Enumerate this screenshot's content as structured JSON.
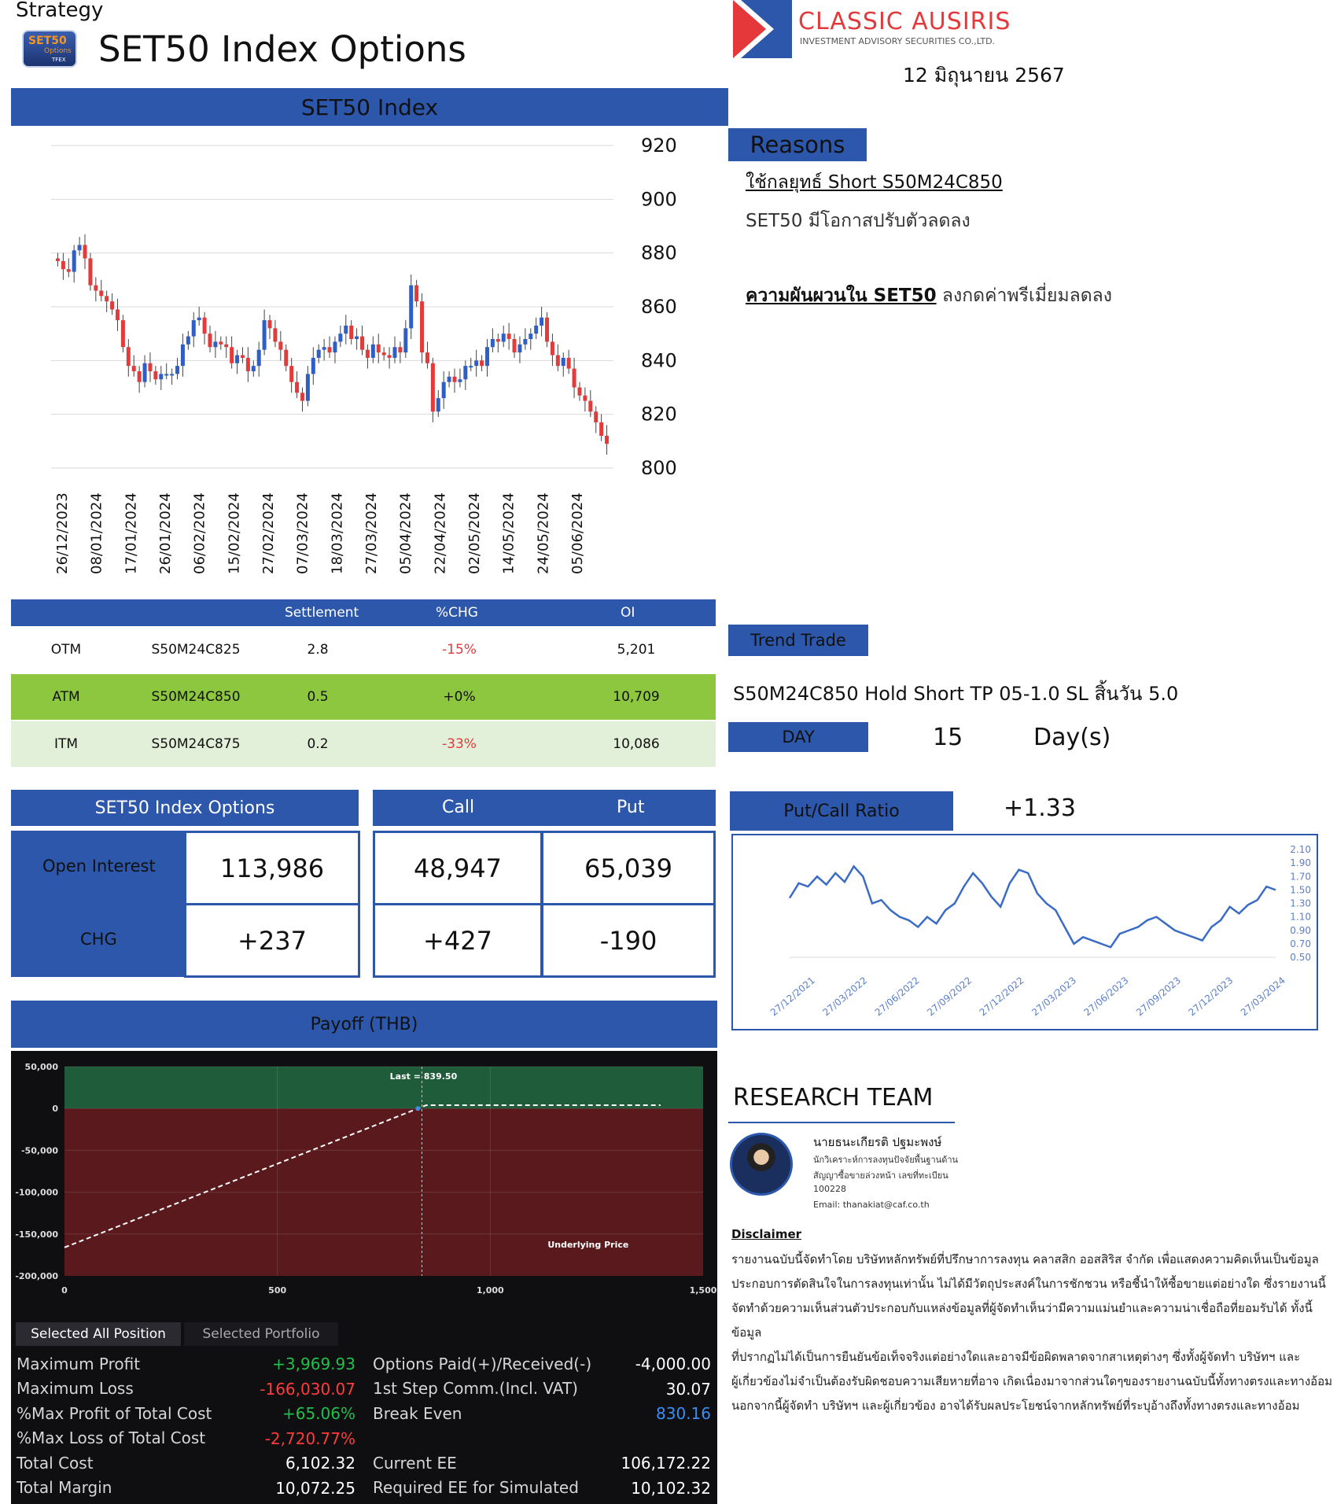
{
  "header": {
    "strategy": "Strategy",
    "badge_text": "SET50",
    "badge_sub": "Options",
    "badge_tfex": "TFEX",
    "title": "SET50 Index Options",
    "brand_name": "CLASSIC AUSIRIS",
    "brand_sub": "INVESTMENT ADVISORY SECURITIES CO.,LTD.",
    "date": "12 มิถุนายน 2567"
  },
  "colors": {
    "accent_blue": "#2d57aa",
    "atm_green": "#8dc63f",
    "itm_light": "#e2efd9",
    "red": "#e5383b",
    "profit_green": "#1e5c3a",
    "loss_red": "#5a1a1d"
  },
  "index_chart": {
    "heading": "SET50 Index",
    "chart_data": {
      "type": "candlestick",
      "yticks": [
        920,
        900,
        880,
        860,
        840,
        820,
        800
      ],
      "ylim": [
        800,
        920
      ],
      "xticks": [
        "26/12/2023",
        "08/01/2024",
        "17/01/2024",
        "26/01/2024",
        "06/02/2024",
        "15/02/2024",
        "27/02/2024",
        "07/03/2024",
        "18/03/2024",
        "27/03/2024",
        "05/04/2024",
        "22/04/2024",
        "02/05/2024",
        "14/05/2024",
        "24/05/2024",
        "05/06/2024"
      ],
      "grid": true,
      "closes": [
        877,
        874,
        873,
        881,
        883,
        878,
        868,
        866,
        864,
        862,
        859,
        855,
        845,
        838,
        836,
        832,
        839,
        836,
        833,
        835,
        835,
        835,
        838,
        846,
        849,
        855,
        856,
        850,
        845,
        847,
        846,
        845,
        839,
        842,
        841,
        836,
        838,
        844,
        855,
        852,
        847,
        844,
        838,
        832,
        828,
        825,
        835,
        841,
        844,
        845,
        843,
        847,
        850,
        853,
        848,
        849,
        844,
        841,
        846,
        843,
        842,
        841,
        845,
        843,
        852,
        868,
        862,
        843,
        839,
        821,
        826,
        832,
        834,
        832,
        833,
        838,
        838,
        840,
        838,
        845,
        848,
        847,
        850,
        848,
        843,
        846,
        848,
        850,
        853,
        856,
        847,
        842,
        838,
        841,
        837,
        830,
        827,
        825,
        821,
        817,
        812,
        809
      ]
    }
  },
  "options_table": {
    "headers": [
      "",
      "",
      "Settlement",
      "%CHG",
      "OI"
    ],
    "rows": [
      {
        "moneyness": "OTM",
        "series": "S50M24C825",
        "settlement": "2.8",
        "chg": "-15%",
        "oi": "5,201"
      },
      {
        "moneyness": "ATM",
        "series": "S50M24C850",
        "settlement": "0.5",
        "chg": "+0%",
        "oi": "10,709"
      },
      {
        "moneyness": "ITM",
        "series": "S50M24C875",
        "settlement": "0.2",
        "chg": "-33%",
        "oi": "10,086"
      }
    ]
  },
  "oi_grid": {
    "title": "SET50 Index Options",
    "call_label": "Call",
    "put_label": "Put",
    "open_interest_label": "Open Interest",
    "chg_label": "CHG",
    "open_interest_total": "113,986",
    "chg_total": "+237",
    "call_oi": "48,947",
    "put_oi": "65,039",
    "call_chg": "+427",
    "put_chg": "-190"
  },
  "payoff": {
    "heading": "Payoff (THB)",
    "chart_data": {
      "type": "line",
      "yticks": [
        "50,000",
        "0",
        "-50,000",
        "-100,000",
        "-150,000",
        "-200,000"
      ],
      "xticks": [
        "0",
        "500",
        "1,000",
        "1,500"
      ],
      "xlim": [
        0,
        1500
      ],
      "ylim": [
        -200000,
        50000
      ],
      "x": [
        0,
        830.16,
        850,
        1400
      ],
      "y": [
        -166030,
        0,
        3970,
        3970
      ],
      "last_label": "Last = 839.50",
      "last_x": 839.5,
      "underlying_label": "Underlying Price"
    },
    "tabs": [
      "Selected All Position",
      "Selected Portfolio"
    ],
    "left_stats": [
      {
        "label": "Maximum Profit",
        "value": "+3,969.93",
        "color": "green"
      },
      {
        "label": "Maximum Loss",
        "value": "-166,030.07",
        "color": "red"
      },
      {
        "label": "%Max Profit of Total Cost",
        "value": "+65.06%",
        "color": "green"
      },
      {
        "label": "%Max Loss of Total Cost",
        "value": "-2,720.77%",
        "color": "red"
      },
      {
        "label": "Total Cost",
        "value": "6,102.32",
        "color": "white"
      },
      {
        "label": "Total Margin",
        "value": "10,072.25",
        "color": "white"
      }
    ],
    "right_stats": [
      {
        "label": "Options Paid(+)/Received(-)",
        "value": "-4,000.00",
        "color": "white"
      },
      {
        "label": "1st Step Comm.(Incl. VAT)",
        "value": "30.07",
        "color": "white"
      },
      {
        "label": "Break Even",
        "value": "830.16",
        "color": "blue"
      },
      {
        "label": "",
        "value": "",
        "color": "white"
      },
      {
        "label": "Current EE",
        "value": "106,172.22",
        "color": "white"
      },
      {
        "label": "Required EE for Simulated",
        "value": "10,102.32",
        "color": "white"
      }
    ]
  },
  "reasons": {
    "heading": "Reasons",
    "line1": "ใช้กลยุทธ์ Short S50M24C850",
    "line2": "SET50 มีโอกาสปรับตัวลดลง",
    "line3_underlined": "ความผันผวนใน SET50",
    "line3_rest": " ลงกดค่าพรีเมี่ยมลดลง"
  },
  "trend": {
    "heading": "Trend Trade",
    "text": "S50M24C850 Hold Short TP 05-1.0 SL สิ้นวัน 5.0",
    "day_label": "DAY",
    "day_value": "15",
    "day_unit": "Day(s)"
  },
  "pcr": {
    "heading": "Put/Call Ratio",
    "value": "+1.33",
    "chart_data": {
      "type": "line",
      "yticks": [
        "2.10",
        "1.90",
        "1.70",
        "1.50",
        "1.30",
        "1.10",
        "0.90",
        "0.70",
        "0.50"
      ],
      "ylim": [
        0.5,
        2.1
      ],
      "xticks": [
        "27/12/2021",
        "27/03/2022",
        "27/06/2022",
        "27/09/2022",
        "27/12/2022",
        "27/03/2023",
        "27/06/2023",
        "27/09/2023",
        "27/12/2023",
        "27/03/2024"
      ],
      "values": [
        1.38,
        1.6,
        1.55,
        1.7,
        1.58,
        1.75,
        1.62,
        1.85,
        1.7,
        1.3,
        1.35,
        1.2,
        1.1,
        1.05,
        0.95,
        1.1,
        1.0,
        1.2,
        1.3,
        1.55,
        1.75,
        1.6,
        1.4,
        1.25,
        1.6,
        1.8,
        1.75,
        1.45,
        1.3,
        1.2,
        0.95,
        0.7,
        0.8,
        0.75,
        0.7,
        0.65,
        0.85,
        0.9,
        0.95,
        1.05,
        1.1,
        1.0,
        0.9,
        0.85,
        0.8,
        0.75,
        0.95,
        1.05,
        1.25,
        1.15,
        1.28,
        1.35,
        1.55,
        1.5
      ]
    }
  },
  "research": {
    "heading": "RESEARCH TEAM",
    "name": "นายธนะเกียรติ ปฐมะพงษ์",
    "role": "นักวิเคราะห์การลงทุนปัจจัยพื้นฐานด้าน",
    "role2": "สัญญาซื้อขายล่วงหน้า เลขที่ทะเบียน",
    "reg": "100228",
    "email": "Email: thanakiat@caf.co.th"
  },
  "disclaimer": {
    "title": "Disclaimer",
    "lines": [
      "รายงานฉบับนี้จัดทำโดย บริษัทหลักทรัพย์ที่ปรึกษาการลงทุน คลาสสิก ออสสิริส จำกัด เพื่อแสดงความคิดเห็นเป็นข้อมูล",
      "ประกอบการตัดสินใจในการลงทุนเท่านั้น ไม่ได้มีวัตถุประสงค์ในการชักชวน หรือชี้นำให้ซื้อขายแต่อย่างใด ซึ่งรายงานนี้",
      "จัดทำด้วยความเห็นส่วนตัวประกอบกับแหล่งข้อมูลที่ผู้จัดทำเห็นว่ามีความแม่นยำและความน่าเชื่อถือที่ยอมรับได้ ทั้งนี้ข้อมูล",
      "ที่ปรากฏไม่ได้เป็นการยืนยันข้อเท็จจริงแต่อย่างใดและอาจมีข้อผิดพลาดจากสาเหตุต่างๆ ซึ่งทั้งผู้จัดทำ บริษัทฯ และ",
      "ผู้เกี่ยวข้องไม่จำเป็นต้องรับผิดชอบความเสียหายที่อาจ เกิดเนื่องมาจากส่วนใดๆของรายงานฉบับนี้ทั้งทางตรงและทางอ้อม",
      "นอกจากนี้ผู้จัดทำ บริษัทฯ และผู้เกี่ยวข้อง อาจได้รับผลประโยชน์จากหลักทรัพย์ที่ระบุอ้างถึงทั้งทางตรงและทางอ้อม"
    ]
  }
}
